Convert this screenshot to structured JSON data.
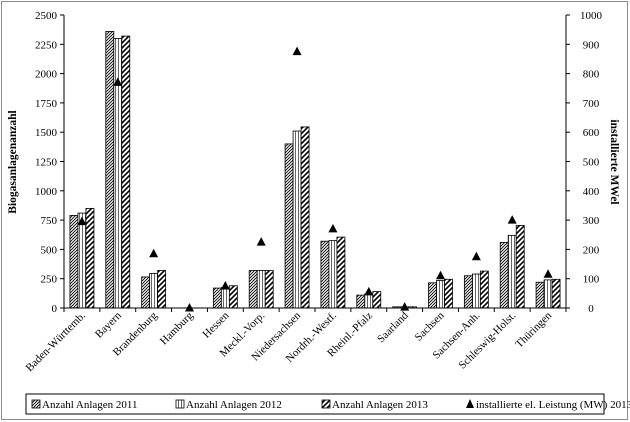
{
  "chart_data": {
    "type": "bar",
    "title": "",
    "ylabel": "Biogasanlagenanzahl",
    "y2label": "installierte MWel",
    "ylim": [
      0,
      2500
    ],
    "y2lim": [
      0,
      1000
    ],
    "yticks": [
      "0",
      "250",
      "500",
      "750",
      "1000",
      "1250",
      "1500",
      "1750",
      "2000",
      "2250",
      "2500"
    ],
    "y2ticks": [
      "0",
      "100",
      "200",
      "300",
      "400",
      "500",
      "600",
      "700",
      "800",
      "900",
      "1000"
    ],
    "grid": false,
    "legend_position": "bottom",
    "categories": [
      "Baden-Württemb.",
      "Bayern",
      "Brandenburg",
      "Hamburg",
      "Hessen",
      "Meckl.-Vorp.",
      "Niedersachsen",
      "Nordrh.-Westf.",
      "Rheinl.-Pfalz",
      "Saarland",
      "Sachsen",
      "Sachsen-Anh.",
      "Schleswig-Holst.",
      "Thüringen"
    ],
    "series": [
      {
        "name": "Anzahl Anlagen 2011",
        "axis": "left",
        "pattern": "dense-diagonal",
        "values": [
          790,
          2360,
          265,
          0,
          170,
          320,
          1400,
          570,
          110,
          10,
          215,
          275,
          560,
          220
        ]
      },
      {
        "name": "Anzahl Anlagen 2012",
        "axis": "left",
        "pattern": "vertical-lines",
        "values": [
          810,
          2300,
          295,
          0,
          175,
          320,
          1510,
          575,
          120,
          10,
          235,
          290,
          620,
          240
        ]
      },
      {
        "name": "Anzahl Anlagen 2013",
        "axis": "left",
        "pattern": "wide-diagonal",
        "values": [
          850,
          2320,
          320,
          0,
          190,
          320,
          1545,
          605,
          140,
          10,
          245,
          315,
          705,
          245
        ]
      },
      {
        "name": "installierte el. Leistung (MW) 2013",
        "axis": "right",
        "marker": "triangle",
        "values": [
          295,
          770,
          185,
          0,
          75,
          225,
          875,
          270,
          55,
          3,
          110,
          175,
          300,
          115
        ]
      }
    ]
  }
}
